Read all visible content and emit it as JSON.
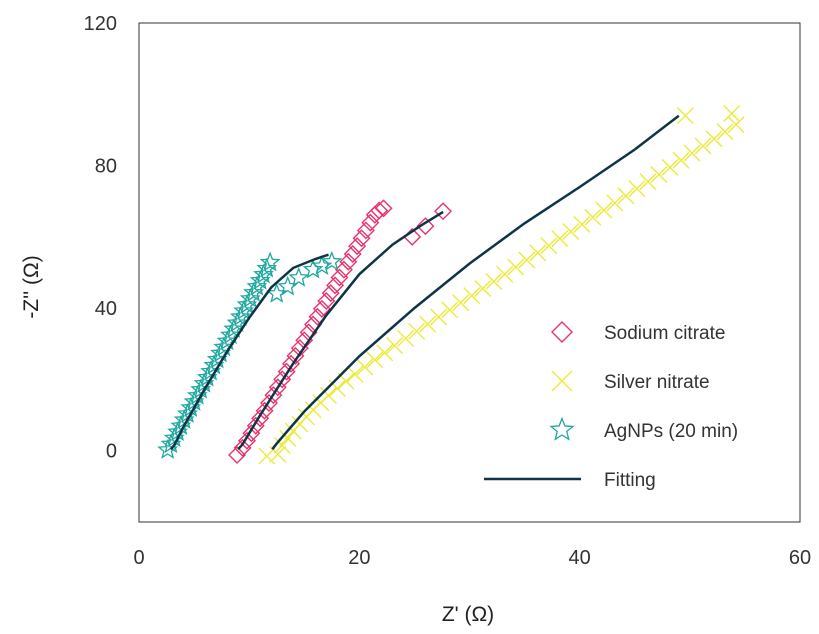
{
  "chart_data": {
    "type": "scatter",
    "xlabel": "Z' (Ω)",
    "ylabel": "-Z'' (Ω)",
    "xlim": [
      0,
      60
    ],
    "ylim": [
      -20,
      120
    ],
    "xticks": [
      0,
      20,
      40,
      60
    ],
    "yticks": [
      0,
      40,
      80,
      120
    ],
    "grid": false,
    "legend_placement": "right",
    "series": [
      {
        "name": "Sodium citrate",
        "marker": "diamond",
        "color": "#E8336E",
        "points": [
          [
            8.9,
            -1.2
          ],
          [
            9.4,
            0.8
          ],
          [
            9.8,
            2.8
          ],
          [
            10.2,
            4.9
          ],
          [
            10.6,
            7.0
          ],
          [
            11.0,
            9.1
          ],
          [
            11.4,
            11.2
          ],
          [
            11.8,
            13.4
          ],
          [
            12.2,
            15.6
          ],
          [
            12.6,
            17.8
          ],
          [
            13.0,
            20.0
          ],
          [
            13.4,
            22.2
          ],
          [
            13.8,
            24.4
          ],
          [
            14.2,
            26.6
          ],
          [
            14.6,
            28.8
          ],
          [
            15.0,
            31.0
          ],
          [
            15.4,
            33.2
          ],
          [
            15.8,
            35.4
          ],
          [
            16.2,
            37.6
          ],
          [
            16.6,
            39.8
          ],
          [
            17.0,
            42.0
          ],
          [
            17.4,
            44.2
          ],
          [
            17.8,
            46.4
          ],
          [
            18.2,
            48.6
          ],
          [
            18.6,
            50.8
          ],
          [
            19.0,
            53.0
          ],
          [
            19.4,
            55.2
          ],
          [
            19.8,
            57.4
          ],
          [
            20.2,
            59.6
          ],
          [
            20.6,
            61.8
          ],
          [
            21.0,
            64.0
          ],
          [
            21.4,
            66.2
          ],
          [
            21.8,
            67.4
          ],
          [
            22.2,
            68.0
          ],
          [
            24.8,
            60.0
          ],
          [
            26.0,
            63.0
          ],
          [
            27.6,
            67.2
          ]
        ]
      },
      {
        "name": "Silver nitrate",
        "marker": "x",
        "color": "#EBEB3C",
        "points": [
          [
            11.6,
            -1.5
          ],
          [
            12.6,
            -1.0
          ],
          [
            13.0,
            1.5
          ],
          [
            13.5,
            3.5
          ],
          [
            14.0,
            5.5
          ],
          [
            14.6,
            7.5
          ],
          [
            15.2,
            9.5
          ],
          [
            15.8,
            11.5
          ],
          [
            16.5,
            13.5
          ],
          [
            17.2,
            15.5
          ],
          [
            18.0,
            17.5
          ],
          [
            18.8,
            19.5
          ],
          [
            19.6,
            21.5
          ],
          [
            20.5,
            23.5
          ],
          [
            21.4,
            25.5
          ],
          [
            22.3,
            27.5
          ],
          [
            23.2,
            29.5
          ],
          [
            24.2,
            31.5
          ],
          [
            25.2,
            33.5
          ],
          [
            26.2,
            35.5
          ],
          [
            27.2,
            37.5
          ],
          [
            28.2,
            39.5
          ],
          [
            29.2,
            41.5
          ],
          [
            30.2,
            43.5
          ],
          [
            31.2,
            45.5
          ],
          [
            32.2,
            47.5
          ],
          [
            33.2,
            49.5
          ],
          [
            34.2,
            51.5
          ],
          [
            35.2,
            53.5
          ],
          [
            36.2,
            55.5
          ],
          [
            37.2,
            57.5
          ],
          [
            38.2,
            59.5
          ],
          [
            39.2,
            61.5
          ],
          [
            40.2,
            63.5
          ],
          [
            41.2,
            65.5
          ],
          [
            42.2,
            67.5
          ],
          [
            43.2,
            69.5
          ],
          [
            44.2,
            71.5
          ],
          [
            45.2,
            73.5
          ],
          [
            46.2,
            75.5
          ],
          [
            47.2,
            77.5
          ],
          [
            48.2,
            79.5
          ],
          [
            49.2,
            81.5
          ],
          [
            50.2,
            83.5
          ],
          [
            51.2,
            85.5
          ],
          [
            52.2,
            87.5
          ],
          [
            53.2,
            89.5
          ],
          [
            54.2,
            91.5
          ],
          [
            49.6,
            94.0
          ],
          [
            53.8,
            94.6
          ]
        ]
      },
      {
        "name": "AgNPs (20 min)",
        "marker": "star",
        "color": "#1FA7A0",
        "points": [
          [
            2.6,
            0.2
          ],
          [
            2.9,
            1.8
          ],
          [
            3.2,
            3.5
          ],
          [
            3.5,
            5.2
          ],
          [
            3.8,
            6.9
          ],
          [
            4.1,
            8.6
          ],
          [
            4.4,
            10.3
          ],
          [
            4.7,
            12.0
          ],
          [
            5.0,
            13.7
          ],
          [
            5.3,
            15.4
          ],
          [
            5.6,
            17.1
          ],
          [
            5.9,
            18.8
          ],
          [
            6.2,
            20.5
          ],
          [
            6.5,
            22.2
          ],
          [
            6.8,
            23.9
          ],
          [
            7.1,
            25.6
          ],
          [
            7.4,
            27.3
          ],
          [
            7.7,
            29.0
          ],
          [
            8.0,
            30.7
          ],
          [
            8.3,
            32.4
          ],
          [
            8.6,
            34.1
          ],
          [
            8.9,
            35.8
          ],
          [
            9.2,
            37.5
          ],
          [
            9.5,
            39.2
          ],
          [
            9.8,
            40.9
          ],
          [
            10.1,
            42.6
          ],
          [
            10.4,
            44.3
          ],
          [
            10.7,
            46.0
          ],
          [
            11.0,
            47.7
          ],
          [
            11.3,
            49.4
          ],
          [
            11.6,
            51.1
          ],
          [
            11.9,
            52.8
          ],
          [
            12.5,
            44.0
          ],
          [
            13.5,
            46.0
          ],
          [
            14.5,
            48.5
          ],
          [
            15.8,
            50.8
          ],
          [
            16.6,
            51.8
          ],
          [
            17.5,
            53.0
          ]
        ]
      },
      {
        "name": "Fitting",
        "marker": "line",
        "color": "#0F3445",
        "lines": [
          [
            [
              2.9,
              0.4
            ],
            [
              3.2,
              1.6
            ],
            [
              4.0,
              6.5
            ],
            [
              6.0,
              17.5
            ],
            [
              8.0,
              27.8
            ],
            [
              10.0,
              37.3
            ],
            [
              12.0,
              45.8
            ],
            [
              14.0,
              51.3
            ],
            [
              16.0,
              53.8
            ],
            [
              17.2,
              55.0
            ]
          ],
          [
            [
              9.0,
              0.4
            ],
            [
              9.4,
              1.8
            ],
            [
              11.0,
              10.0
            ],
            [
              14.0,
              24.5
            ],
            [
              17.0,
              38.0
            ],
            [
              20.0,
              49.5
            ],
            [
              23.0,
              57.8
            ],
            [
              25.5,
              63.0
            ],
            [
              27.6,
              67.0
            ]
          ],
          [
            [
              12.1,
              0.4
            ],
            [
              12.5,
              2.0
            ],
            [
              15.0,
              11.0
            ],
            [
              20.0,
              26.5
            ],
            [
              25.0,
              40.0
            ],
            [
              30.0,
              52.5
            ],
            [
              35.0,
              63.8
            ],
            [
              40.0,
              74.0
            ],
            [
              45.0,
              84.5
            ],
            [
              49.0,
              94.0
            ]
          ]
        ]
      }
    ]
  }
}
